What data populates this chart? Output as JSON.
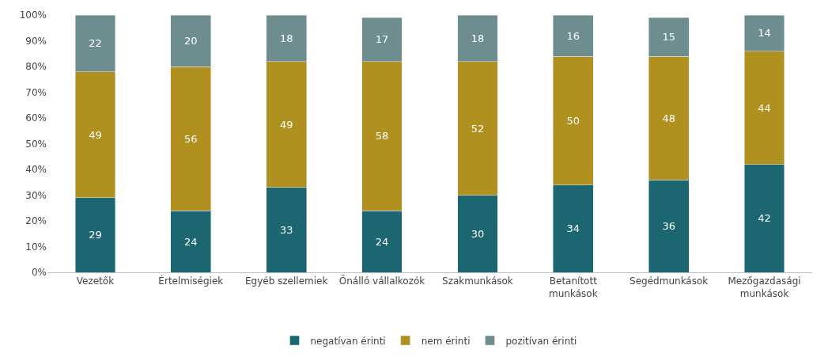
{
  "chart_data": {
    "type": "bar",
    "stacked": true,
    "categories": [
      "Vezetők",
      "Értelmiségiek",
      "Egyéb szellemiek",
      "Önálló vállalkozók",
      "Szakmunkások",
      "Betanított\nmunkások",
      "Segédmunkások",
      "Mezőgazdasági\nmunkások"
    ],
    "series": [
      {
        "name": "negatívan érinti",
        "color": "#1b6670",
        "values": [
          29,
          24,
          33,
          24,
          30,
          34,
          36,
          42
        ]
      },
      {
        "name": "nem érinti",
        "color": "#b0901f",
        "values": [
          49,
          56,
          49,
          58,
          52,
          50,
          48,
          44
        ]
      },
      {
        "name": "pozitívan érinti",
        "color": "#6e8d8f",
        "values": [
          22,
          20,
          18,
          17,
          18,
          16,
          15,
          14
        ]
      }
    ],
    "ylim": [
      0,
      100
    ],
    "yticks": [
      {
        "value": 0,
        "label": "0%"
      },
      {
        "value": 10,
        "label": "10%"
      },
      {
        "value": 20,
        "label": "20%"
      },
      {
        "value": 30,
        "label": "30%"
      },
      {
        "value": 40,
        "label": "40%"
      },
      {
        "value": 50,
        "label": "50%"
      },
      {
        "value": 60,
        "label": "60%"
      },
      {
        "value": 70,
        "label": "70%"
      },
      {
        "value": 80,
        "label": "80%"
      },
      {
        "value": 90,
        "label": "90%"
      },
      {
        "value": 100,
        "label": "100%"
      }
    ],
    "data_labels": true,
    "legend": "bottom"
  }
}
